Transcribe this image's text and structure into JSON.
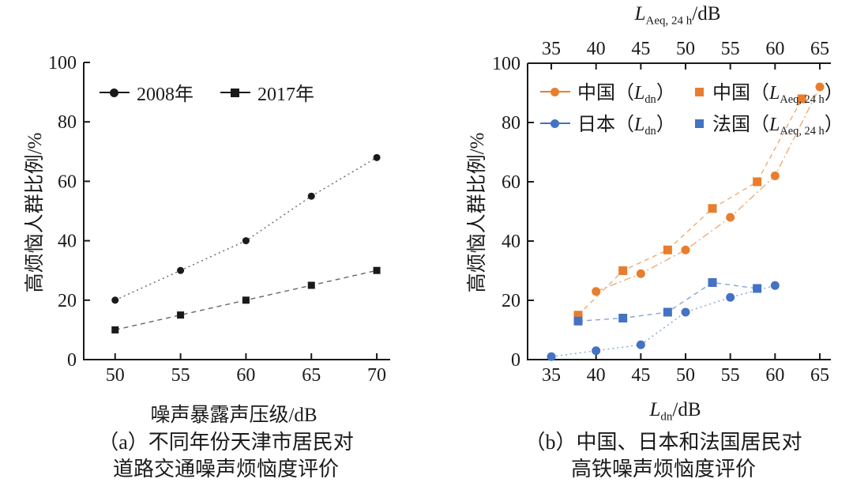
{
  "figure": {
    "background": "#ffffff",
    "text_color": "#1a1a1a"
  },
  "colors": {
    "orange": "#E87E2D",
    "blue": "#4472C4",
    "black_series": "#1A1A1A",
    "axis": "#1A1A1A"
  },
  "chart_data": [
    {
      "id": "a",
      "type": "line",
      "xlabel": "噪声暴露声压级/dB",
      "ylabel": "高烦恼人群比例/%",
      "caption_line1": "（a）不同年份天津市居民对",
      "caption_line2": "道路交通噪声烦恼度评价",
      "grid": "off",
      "legend_position": "top-left-inside",
      "x_axis": {
        "min": 47.6,
        "max": 70.6,
        "ticks": [
          50,
          55,
          60,
          65,
          70
        ],
        "top_ticks": false
      },
      "y_axis": {
        "min": 0,
        "max": 100,
        "ticks": [
          0,
          20,
          40,
          60,
          80,
          100
        ]
      },
      "legend": [
        {
          "label": "2008年",
          "marker": "circle",
          "with_line": true,
          "color_key": "black_series"
        },
        {
          "label": "2017年",
          "marker": "square",
          "with_line": true,
          "color_key": "black_series"
        }
      ],
      "series": [
        {
          "name": "2008年",
          "marker": "circle",
          "color_key": "black_series",
          "dash": "dotted",
          "points": [
            [
              50,
              20
            ],
            [
              55,
              30
            ],
            [
              60,
              40
            ],
            [
              65,
              55
            ],
            [
              70,
              68
            ]
          ]
        },
        {
          "name": "2017年",
          "marker": "square",
          "color_key": "black_series",
          "dash": "dashed",
          "points": [
            [
              50,
              10
            ],
            [
              55,
              15
            ],
            [
              60,
              20
            ],
            [
              65,
              25
            ],
            [
              70,
              30
            ]
          ]
        }
      ]
    },
    {
      "id": "b",
      "type": "line",
      "xlabel_var": {
        "pre": "L",
        "sub": "dn",
        "post": "/dB"
      },
      "top_axis_label": {
        "pre": "L",
        "sub": "Aeq, 24 h",
        "post": "/dB"
      },
      "ylabel": "高烦恼人群比例/%",
      "caption_line1": "（b）中国、日本和法国居民对",
      "caption_line2": "高铁噪声烦恼度评价",
      "grid": "off",
      "legend_position": "top-left-inside",
      "x_axis": {
        "min": 32.35,
        "max": 65.62,
        "ticks": [
          35,
          40,
          45,
          50,
          55,
          60,
          65
        ],
        "top_ticks": true
      },
      "y_axis": {
        "min": 0,
        "max": 100,
        "ticks": [
          0,
          20,
          40,
          60,
          80,
          100
        ]
      },
      "legend": [
        {
          "text": "中国（",
          "var": "L",
          "sub": "dn",
          "close": "）",
          "marker": "circle",
          "with_line": true,
          "color_key": "orange"
        },
        {
          "text": "中国（",
          "var": "L",
          "sub": "Aeq, 24 h",
          "close": "）",
          "marker": "square",
          "with_line": false,
          "color_key": "orange"
        },
        {
          "text": "日本（",
          "var": "L",
          "sub": "dn",
          "close": "）",
          "marker": "circle",
          "with_line": true,
          "color_key": "blue"
        },
        {
          "text": "法国（",
          "var": "L",
          "sub": "Aeq, 24 h",
          "close": "）",
          "marker": "square",
          "with_line": false,
          "color_key": "blue"
        }
      ],
      "series": [
        {
          "name": "中国（Ldn）",
          "marker": "circle",
          "color_key": "orange",
          "dash": "dashdot",
          "points": [
            [
              40,
              23
            ],
            [
              45,
              29
            ],
            [
              50,
              37
            ],
            [
              55,
              48
            ],
            [
              60,
              62
            ],
            [
              65,
              92
            ]
          ]
        },
        {
          "name": "中国（LAeq,24h）",
          "marker": "square",
          "color_key": "orange",
          "dash": "dashed",
          "points": [
            [
              38,
              15
            ],
            [
              43,
              30
            ],
            [
              48,
              37
            ],
            [
              53,
              51
            ],
            [
              58,
              60
            ],
            [
              63,
              88
            ]
          ]
        },
        {
          "name": "日本（Ldn）",
          "marker": "circle",
          "color_key": "blue",
          "dash": "dotted",
          "points": [
            [
              35,
              1
            ],
            [
              40,
              3
            ],
            [
              45,
              5
            ],
            [
              50,
              16
            ],
            [
              55,
              21
            ],
            [
              60,
              25
            ]
          ]
        },
        {
          "name": "法国（LAeq,24h）",
          "marker": "square",
          "color_key": "blue",
          "dash": "dashed",
          "points": [
            [
              38,
              13
            ],
            [
              43,
              14
            ],
            [
              48,
              16
            ],
            [
              53,
              26
            ],
            [
              58,
              24
            ]
          ]
        }
      ]
    }
  ]
}
